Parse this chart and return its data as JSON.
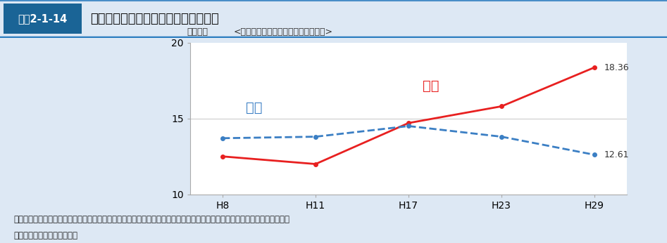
{
  "header_label": "図表2-1-14",
  "header_title": "外来で治療を受けるがん患者数の増加",
  "chart_subtitle": "<調査日に受療したがん患者の推計数>",
  "ylabel": "（万人）",
  "x_labels": [
    "H8",
    "H11",
    "H17",
    "H23",
    "H29"
  ],
  "outpatient_values": [
    12.5,
    12.0,
    14.7,
    15.8,
    18.36
  ],
  "inpatient_values": [
    13.7,
    13.8,
    14.5,
    13.8,
    12.61
  ],
  "outpatient_label": "外来",
  "inpatient_label": "入院",
  "outpatient_color": "#e82020",
  "inpatient_color": "#3b7fc4",
  "ylim": [
    10,
    20
  ],
  "yticks": [
    10,
    15,
    20
  ],
  "footer_line1": "資料：厚生労働省政策統括官（統計・情報政策、労使関係担当）「平成２９年患者調査」により厚生労働省医薬・生活衛生局",
  "footer_line2": "　　　総務課において作成。",
  "header_label_bg": "#1a6496",
  "outer_bg_color": "#dde8f4",
  "chart_bg_color": "#ffffff",
  "grid_color": "#cccccc",
  "annotation_out": "18.36",
  "annotation_in": "12.61",
  "border_top_color": "#2c7dbf",
  "border_bottom_color": "#2c7dbf"
}
